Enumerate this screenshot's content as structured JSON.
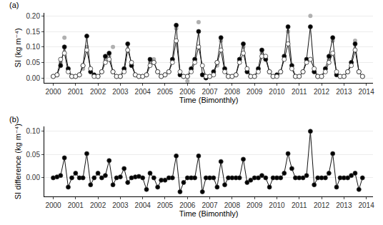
{
  "chart_data": [
    {
      "type": "line",
      "title": "(a)",
      "x_label": "Time (Bimonthly)",
      "y_label": "SI (kg m⁻⁴)",
      "x": [
        2000,
        2000.17,
        2000.33,
        2000.5,
        2000.67,
        2000.83,
        2001,
        2001.17,
        2001.33,
        2001.5,
        2001.67,
        2001.83,
        2002,
        2002.17,
        2002.33,
        2002.5,
        2002.67,
        2002.83,
        2003,
        2003.17,
        2003.33,
        2003.5,
        2003.67,
        2003.83,
        2004,
        2004.17,
        2004.33,
        2004.5,
        2004.67,
        2004.83,
        2005,
        2005.17,
        2005.33,
        2005.5,
        2005.67,
        2005.83,
        2006,
        2006.17,
        2006.33,
        2006.5,
        2006.67,
        2006.83,
        2007,
        2007.17,
        2007.33,
        2007.5,
        2007.67,
        2007.83,
        2008,
        2008.17,
        2008.33,
        2008.5,
        2008.67,
        2008.83,
        2009,
        2009.17,
        2009.33,
        2009.5,
        2009.67,
        2009.83,
        2010,
        2010.17,
        2010.33,
        2010.5,
        2010.67,
        2010.83,
        2011,
        2011.17,
        2011.33,
        2011.5,
        2011.67,
        2011.83,
        2012,
        2012.17,
        2012.33,
        2012.5,
        2012.67,
        2012.83,
        2013,
        2013.17,
        2013.33,
        2013.5,
        2013.67,
        2013.83
      ],
      "series": [
        {
          "color": "#b0b0b0",
          "marker": "circle",
          "line_style": "none",
          "values": [
            0.005,
            0.01,
            0.05,
            0.13,
            0.03,
            0.005,
            0.005,
            0.01,
            0.03,
            0.1,
            0.02,
            0.005,
            0.005,
            0.02,
            0.06,
            0.07,
            0.1,
            0.005,
            0.005,
            0.03,
            0.09,
            0.05,
            0.01,
            0.005,
            0.005,
            0.01,
            0.05,
            0.06,
            0.02,
            0.005,
            0.01,
            0.02,
            0.06,
            0.16,
            0.01,
            0.005,
            -0.01,
            0.02,
            0.06,
            0.18,
            0.01,
            0.005,
            0.005,
            0.02,
            0.04,
            0.12,
            0.02,
            0.005,
            0.005,
            0.01,
            0.06,
            0.1,
            0.02,
            0.005,
            0.005,
            0.03,
            0.08,
            0.06,
            0.02,
            0.005,
            0.01,
            0.02,
            0.07,
            0.15,
            0.03,
            0.005,
            0.005,
            0.02,
            0.06,
            0.2,
            0.02,
            0.005,
            0.005,
            0.03,
            0.06,
            0.12,
            0.01,
            0.005,
            0.005,
            0.02,
            0.05,
            0.12,
            0.02,
            0.005
          ]
        },
        {
          "color": "#000000",
          "marker": "circle",
          "line_style": "solid",
          "values": [
            0.005,
            0.01,
            0.04,
            0.1,
            0.03,
            0.005,
            0.005,
            0.01,
            0.04,
            0.135,
            0.02,
            0.01,
            0.005,
            0.02,
            0.07,
            0.08,
            0.02,
            0.005,
            0.005,
            0.03,
            0.11,
            0.04,
            0.01,
            0.005,
            0.005,
            0.01,
            0.06,
            0.05,
            0.02,
            0.005,
            0.01,
            0.02,
            0.06,
            0.17,
            0.01,
            0.005,
            0.005,
            0.03,
            0.06,
            0.15,
            0.01,
            0.0,
            0.005,
            0.02,
            0.05,
            0.13,
            0.03,
            0.005,
            0.005,
            0.01,
            0.06,
            0.11,
            0.02,
            0.005,
            0.005,
            0.03,
            0.09,
            0.06,
            0.02,
            0.005,
            0.01,
            0.02,
            0.07,
            0.165,
            0.04,
            0.005,
            0.005,
            0.02,
            0.06,
            0.165,
            0.02,
            0.005,
            0.005,
            0.03,
            0.07,
            0.13,
            0.01,
            0.005,
            0.005,
            0.02,
            0.05,
            0.11,
            0.02,
            0.005
          ]
        },
        {
          "color": "#ffffff",
          "marker": "circle",
          "line_style": "solid",
          "values": [
            0.005,
            0.01,
            0.06,
            0.08,
            0.02,
            0.005,
            0.005,
            0.01,
            0.04,
            0.09,
            0.03,
            0.005,
            0.005,
            0.02,
            0.05,
            0.06,
            0.02,
            0.005,
            0.005,
            0.02,
            0.09,
            0.05,
            0.01,
            0.005,
            0.005,
            0.01,
            0.04,
            0.05,
            0.02,
            0.005,
            0.01,
            0.02,
            0.05,
            0.12,
            0.02,
            0.005,
            0.005,
            0.02,
            0.05,
            0.1,
            0.04,
            0.005,
            0.005,
            0.01,
            0.05,
            0.09,
            0.02,
            0.005,
            0.005,
            0.01,
            0.05,
            0.08,
            0.03,
            0.005,
            0.005,
            0.02,
            0.07,
            0.07,
            0.02,
            0.005,
            0.005,
            0.02,
            0.06,
            0.11,
            0.03,
            0.005,
            0.005,
            0.02,
            0.05,
            0.06,
            0.03,
            0.005,
            0.005,
            0.02,
            0.05,
            0.08,
            0.02,
            0.005,
            0.005,
            0.02,
            0.04,
            0.09,
            0.02,
            0.005
          ]
        }
      ],
      "xlim": [
        1999.6,
        2014.3
      ],
      "xticks": [
        2000,
        2001,
        2002,
        2003,
        2004,
        2005,
        2006,
        2007,
        2008,
        2009,
        2010,
        2011,
        2012,
        2013,
        2014
      ],
      "ylim": [
        -0.015,
        0.21
      ],
      "yticks": [
        {
          "value": 0,
          "label": "0.00"
        },
        {
          "value": 0.05,
          "label": "0.05"
        },
        {
          "value": 0.1,
          "label": "0.10"
        },
        {
          "value": 0.15,
          "label": "0.15"
        },
        {
          "value": 0.2,
          "label": "0.20"
        }
      ],
      "grid": true
    },
    {
      "type": "line",
      "title": "(b)",
      "x_label": "Time (Bimonthly)",
      "y_label": "SI difference (kg m⁻⁴)",
      "x": [
        2000,
        2000.17,
        2000.33,
        2000.5,
        2000.67,
        2000.83,
        2001,
        2001.17,
        2001.33,
        2001.5,
        2001.67,
        2001.83,
        2002,
        2002.17,
        2002.33,
        2002.5,
        2002.67,
        2002.83,
        2003,
        2003.17,
        2003.33,
        2003.5,
        2003.67,
        2003.83,
        2004,
        2004.17,
        2004.33,
        2004.5,
        2004.67,
        2004.83,
        2005,
        2005.17,
        2005.33,
        2005.5,
        2005.67,
        2005.83,
        2006,
        2006.17,
        2006.33,
        2006.5,
        2006.67,
        2006.83,
        2007,
        2007.17,
        2007.33,
        2007.5,
        2007.67,
        2007.83,
        2008,
        2008.17,
        2008.33,
        2008.5,
        2008.67,
        2008.83,
        2009,
        2009.17,
        2009.33,
        2009.5,
        2009.67,
        2009.83,
        2010,
        2010.17,
        2010.33,
        2010.5,
        2010.67,
        2010.83,
        2011,
        2011.17,
        2011.33,
        2011.5,
        2011.67,
        2011.83,
        2012,
        2012.17,
        2012.33,
        2012.5,
        2012.67,
        2012.83,
        2013,
        2013.17,
        2013.33,
        2013.5,
        2013.67,
        2013.83
      ],
      "series": [
        {
          "color": "#000000",
          "marker": "circle",
          "line_style": "solid",
          "values": [
            0.0,
            0.002,
            0.005,
            0.043,
            -0.02,
            0.0,
            0.01,
            0.0,
            0.0,
            0.052,
            -0.015,
            0.0,
            0.01,
            0.0,
            0.005,
            0.037,
            -0.015,
            0.0,
            0.002,
            0.02,
            -0.01,
            0.0,
            0.002,
            0.003,
            0.0,
            -0.025,
            0.01,
            0.0,
            -0.02,
            -0.005,
            -0.005,
            0.0,
            0.0,
            0.047,
            -0.03,
            -0.01,
            0.0,
            0.0,
            0.0,
            0.047,
            -0.03,
            0.0,
            0.0,
            0.0,
            -0.02,
            0.035,
            -0.015,
            0.0,
            0.0,
            0.0,
            0.0,
            0.04,
            -0.01,
            -0.005,
            0.0,
            0.0,
            0.005,
            0.0,
            -0.02,
            0.0,
            0.0,
            0.0,
            0.01,
            0.052,
            0.02,
            0.0,
            0.0,
            0.0,
            0.005,
            0.1,
            -0.015,
            0.0,
            0.0,
            0.0,
            0.01,
            0.052,
            -0.02,
            0.0,
            0.0,
            0.0,
            0.005,
            0.01,
            -0.025,
            0.0
          ]
        }
      ],
      "xlim": [
        1999.6,
        2014.3
      ],
      "xticks": [
        2000,
        2001,
        2002,
        2003,
        2004,
        2005,
        2006,
        2007,
        2008,
        2009,
        2010,
        2011,
        2012,
        2013,
        2014
      ],
      "ylim": [
        -0.04,
        0.11
      ],
      "yticks": [
        {
          "value": 0,
          "label": "0.00"
        },
        {
          "value": 0.05,
          "label": "0.05"
        },
        {
          "value": 0.1,
          "label": "0.10"
        }
      ],
      "grid": true
    }
  ]
}
